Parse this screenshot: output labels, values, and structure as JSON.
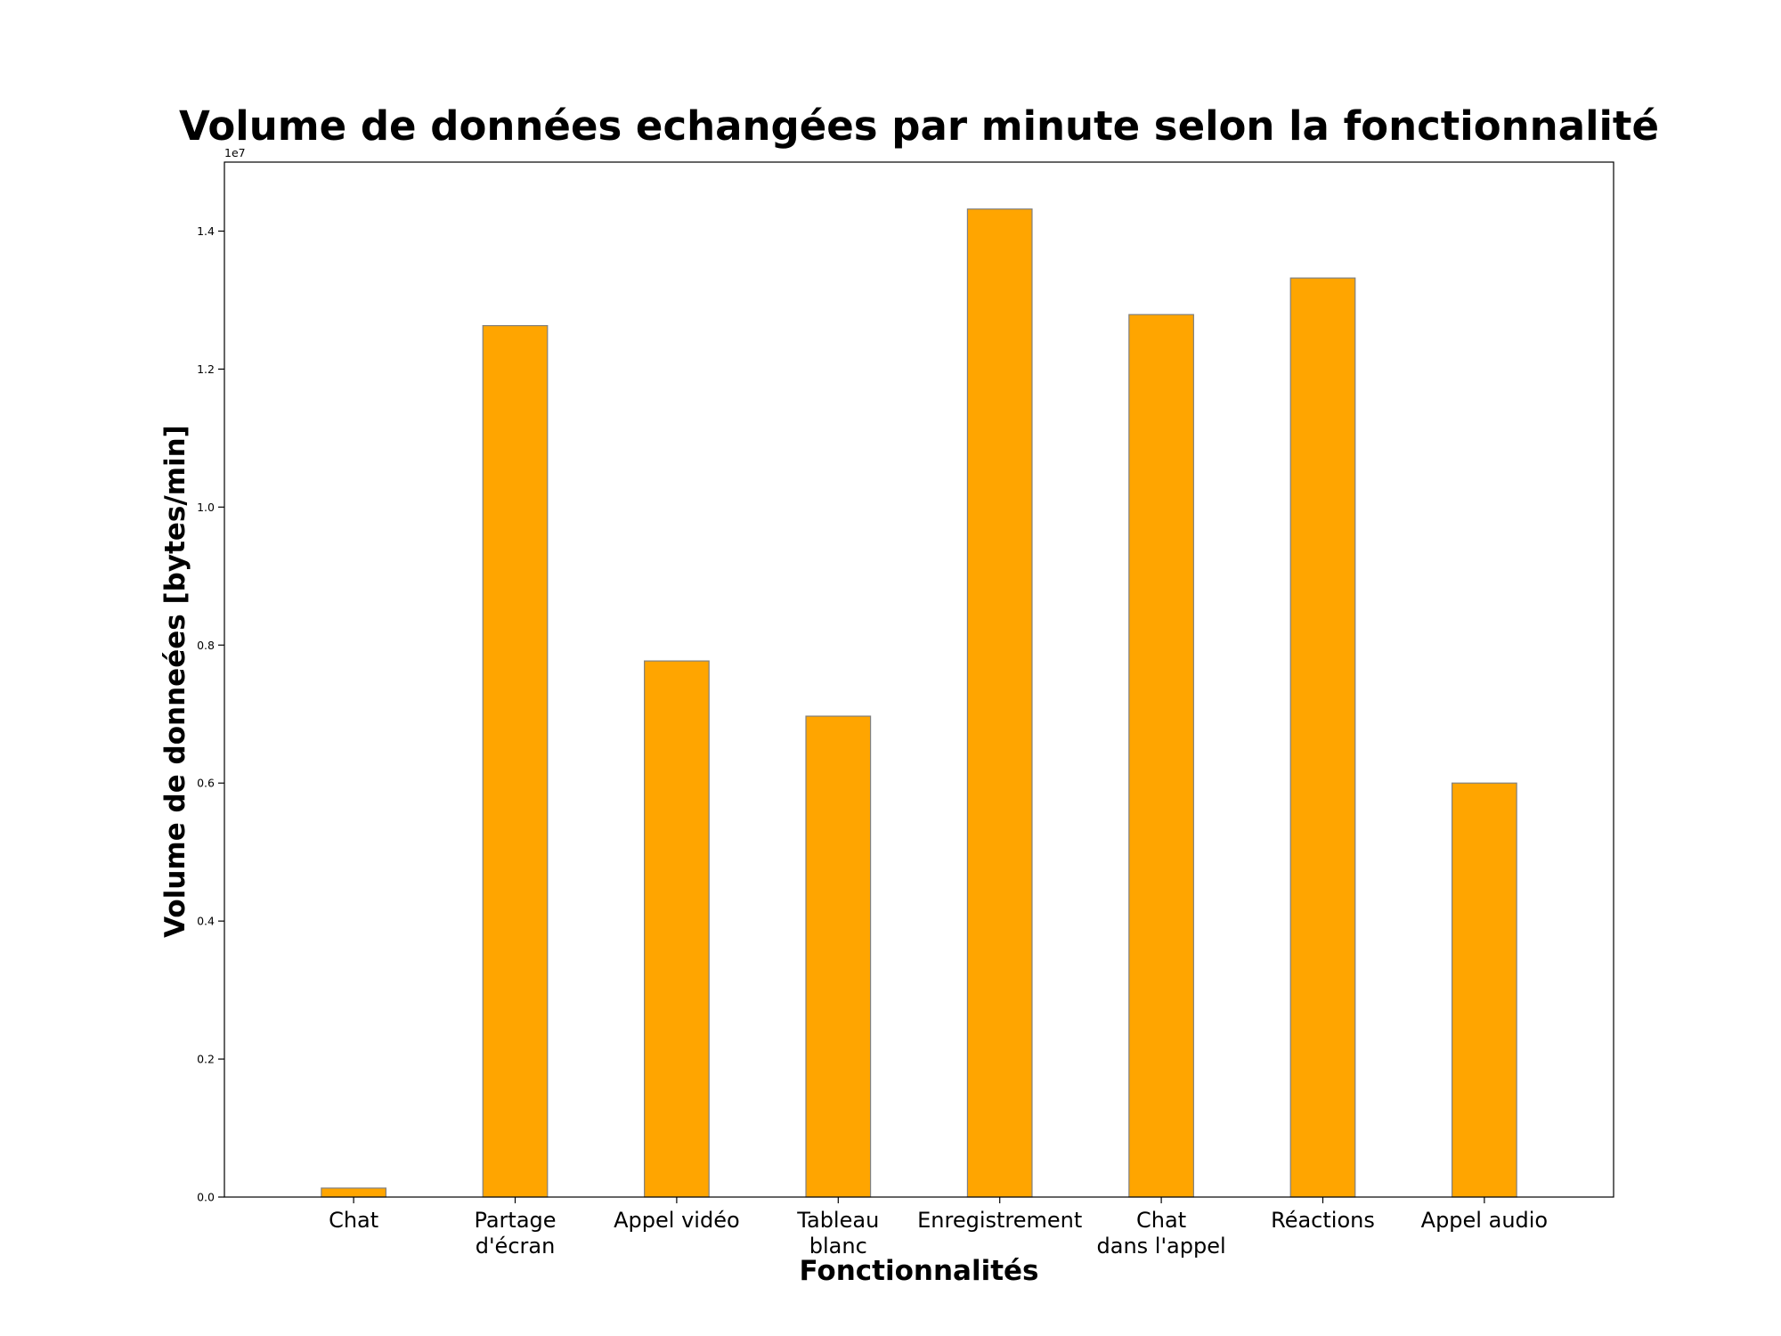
{
  "chart_data": {
    "type": "bar",
    "title": "Volume de données echangées par minute selon la fonctionnalité",
    "xlabel": "Fonctionnalités",
    "ylabel": "Volume de donneées [bytes/min]",
    "y_offset_text": "1e7",
    "categories": [
      [
        "Chat"
      ],
      [
        "Partage",
        "d'écran"
      ],
      [
        "Appel vidéo"
      ],
      [
        "Tableau",
        "blanc"
      ],
      [
        "Enregistrement"
      ],
      [
        "Chat",
        "dans l'appel"
      ],
      [
        "Réactions"
      ],
      [
        "Appel audio"
      ]
    ],
    "values": [
      130000,
      12630000,
      7770000,
      6970000,
      14320000,
      12790000,
      13320000,
      6000000
    ],
    "ylim": [
      0,
      15000000
    ],
    "yticks": [
      0,
      2000000,
      4000000,
      6000000,
      8000000,
      10000000,
      12000000,
      14000000
    ],
    "ytick_labels": [
      "0.0",
      "0.2",
      "0.4",
      "0.6",
      "0.8",
      "1.0",
      "1.2",
      "1.4"
    ],
    "grid": false,
    "bar_color": "#ffa500",
    "bar_edge_color": "#808080"
  }
}
